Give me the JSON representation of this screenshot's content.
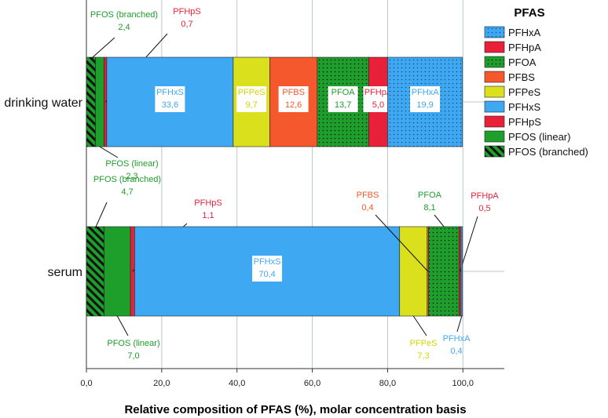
{
  "chart_data": {
    "type": "stacked_barh",
    "xlabel": "Relative composition of PFAS (%), molar concentration basis",
    "legend_title": "PFAS",
    "legend": "upper right",
    "grid": true,
    "categories": [
      "drinking water",
      "serum"
    ],
    "xlim": [
      0,
      111
    ],
    "xticks": [
      {
        "value": 0,
        "label": "0,0"
      },
      {
        "value": 20,
        "label": "20,0"
      },
      {
        "value": 40,
        "label": "40,0"
      },
      {
        "value": 60,
        "label": "60,0"
      },
      {
        "value": 80,
        "label": "80,0"
      },
      {
        "value": 100,
        "label": "100,0"
      }
    ],
    "series": [
      {
        "name": "PFOS (branched)",
        "color": "#1e9e2a",
        "pattern": "hatch",
        "values": [
          2.4,
          4.7
        ],
        "value_labels": [
          "2,4",
          "4,7"
        ]
      },
      {
        "name": "PFOS (linear)",
        "color": "#1e9e2a",
        "values": [
          2.3,
          7.0
        ],
        "value_labels": [
          "2,3",
          "7,0"
        ]
      },
      {
        "name": "PFHpS",
        "color": "#e8203a",
        "values": [
          0.7,
          1.1
        ],
        "value_labels": [
          "0,7",
          "1,1"
        ]
      },
      {
        "name": "PFHxS",
        "color": "#3ea8f2",
        "values": [
          33.6,
          70.4
        ],
        "value_labels": [
          "33,6",
          "70,4"
        ]
      },
      {
        "name": "PFPeS",
        "color": "#dbe01c",
        "values": [
          9.7,
          7.3
        ],
        "value_labels": [
          "9,7",
          "7,3"
        ]
      },
      {
        "name": "PFBS",
        "color": "#f4582c",
        "values": [
          12.6,
          0.4
        ],
        "value_labels": [
          "12,6",
          "0,4"
        ]
      },
      {
        "name": "PFOA",
        "color": "#1e9e2a",
        "pattern": "dots",
        "values": [
          13.7,
          8.1
        ],
        "value_labels": [
          "13,7",
          "8,1"
        ]
      },
      {
        "name": "PFHpA",
        "color": "#e8203a",
        "values": [
          5.0,
          0.5
        ],
        "value_labels": [
          "5,0",
          "0,5"
        ]
      },
      {
        "name": "PFHxA",
        "color": "#3ea8f2",
        "pattern": "dots",
        "values": [
          19.9,
          0.4
        ],
        "value_labels": [
          "19,9",
          "0,4"
        ]
      }
    ]
  }
}
